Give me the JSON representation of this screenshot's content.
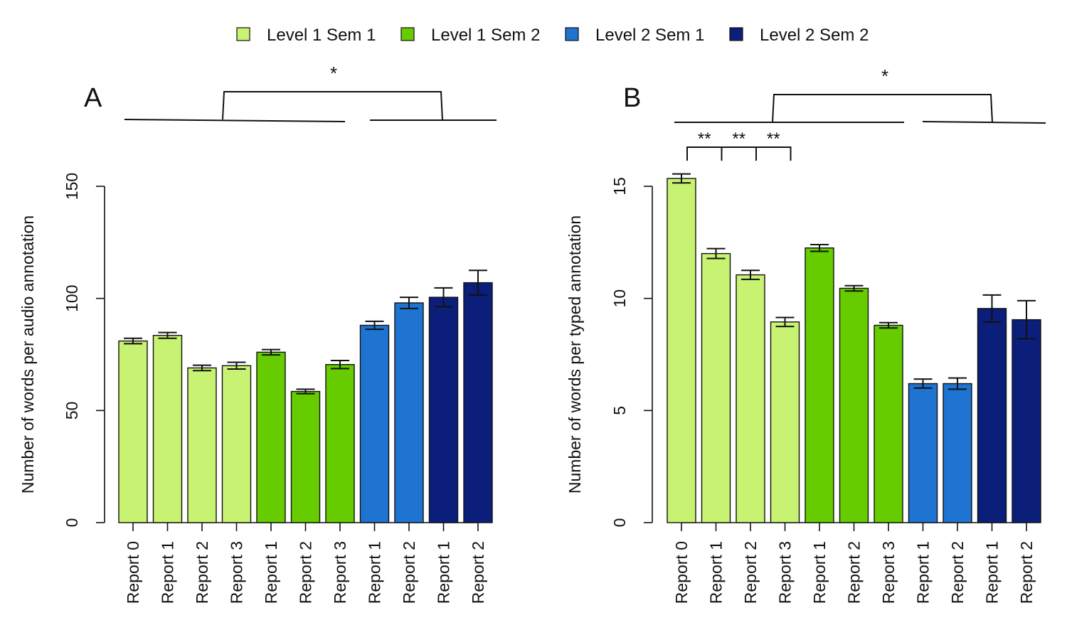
{
  "legend": [
    {
      "label": "Level 1 Sem 1",
      "color": "#c8f271"
    },
    {
      "label": "Level 1 Sem 2",
      "color": "#66cc00"
    },
    {
      "label": "Level 2 Sem 1",
      "color": "#1e74d0"
    },
    {
      "label": "Level 2 Sem 2",
      "color": "#0b1f7a"
    }
  ],
  "chart_data": [
    {
      "panel": "A",
      "type": "bar",
      "ylabel": "Number of words per audio annotation",
      "ylim": [
        0,
        150
      ],
      "yticks": [
        0,
        50,
        100,
        150
      ],
      "categories": [
        "Report 0",
        "Report 1",
        "Report 2",
        "Report 3",
        "Report 1",
        "Report 2",
        "Report 3",
        "Report 1",
        "Report 2",
        "Report 1",
        "Report 2"
      ],
      "groups": [
        "Level 1 Sem 1",
        "Level 1 Sem 1",
        "Level 1 Sem 1",
        "Level 1 Sem 1",
        "Level 1 Sem 2",
        "Level 1 Sem 2",
        "Level 1 Sem 2",
        "Level 2 Sem 1",
        "Level 2 Sem 1",
        "Level 2 Sem 2",
        "Level 2 Sem 2"
      ],
      "values": [
        81,
        83.5,
        69,
        70,
        76,
        58.5,
        70.5,
        88,
        98,
        100.5,
        107
      ],
      "errors": [
        1.2,
        1.3,
        1.2,
        1.5,
        1.2,
        1.0,
        1.8,
        1.8,
        2.5,
        4.2,
        5.5
      ],
      "annotations": [
        {
          "text": "*",
          "type": "bracket-sem1-vs-sem2-level2"
        }
      ],
      "grid": false
    },
    {
      "panel": "B",
      "type": "bar",
      "ylabel": "Number of words per typed annotation",
      "ylim": [
        0,
        15
      ],
      "yticks": [
        0,
        5,
        10,
        15
      ],
      "categories": [
        "Report 0",
        "Report 1",
        "Report 2",
        "Report 3",
        "Report 1",
        "Report 2",
        "Report 3",
        "Report 1",
        "Report 2",
        "Report 1",
        "Report 2"
      ],
      "groups": [
        "Level 1 Sem 1",
        "Level 1 Sem 1",
        "Level 1 Sem 1",
        "Level 1 Sem 1",
        "Level 1 Sem 2",
        "Level 1 Sem 2",
        "Level 1 Sem 2",
        "Level 2 Sem 1",
        "Level 2 Sem 1",
        "Level 2 Sem 2",
        "Level 2 Sem 2"
      ],
      "values": [
        15.35,
        12.0,
        11.05,
        8.95,
        12.25,
        10.45,
        8.8,
        6.2,
        6.2,
        9.55,
        9.05
      ],
      "errors": [
        0.2,
        0.22,
        0.2,
        0.2,
        0.15,
        0.12,
        0.12,
        0.2,
        0.25,
        0.6,
        0.85
      ],
      "annotations": [
        {
          "text": "*",
          "type": "bracket-sem1-vs-sem2-level2"
        },
        {
          "text": "**",
          "type": "bracket-report0-report1"
        },
        {
          "text": "**",
          "type": "bracket-report1-report2"
        },
        {
          "text": "**",
          "type": "bracket-report2-report3"
        }
      ],
      "grid": false
    }
  ],
  "panel_labels": [
    "A",
    "B"
  ],
  "significance": {
    "single": "*",
    "double": "**"
  }
}
